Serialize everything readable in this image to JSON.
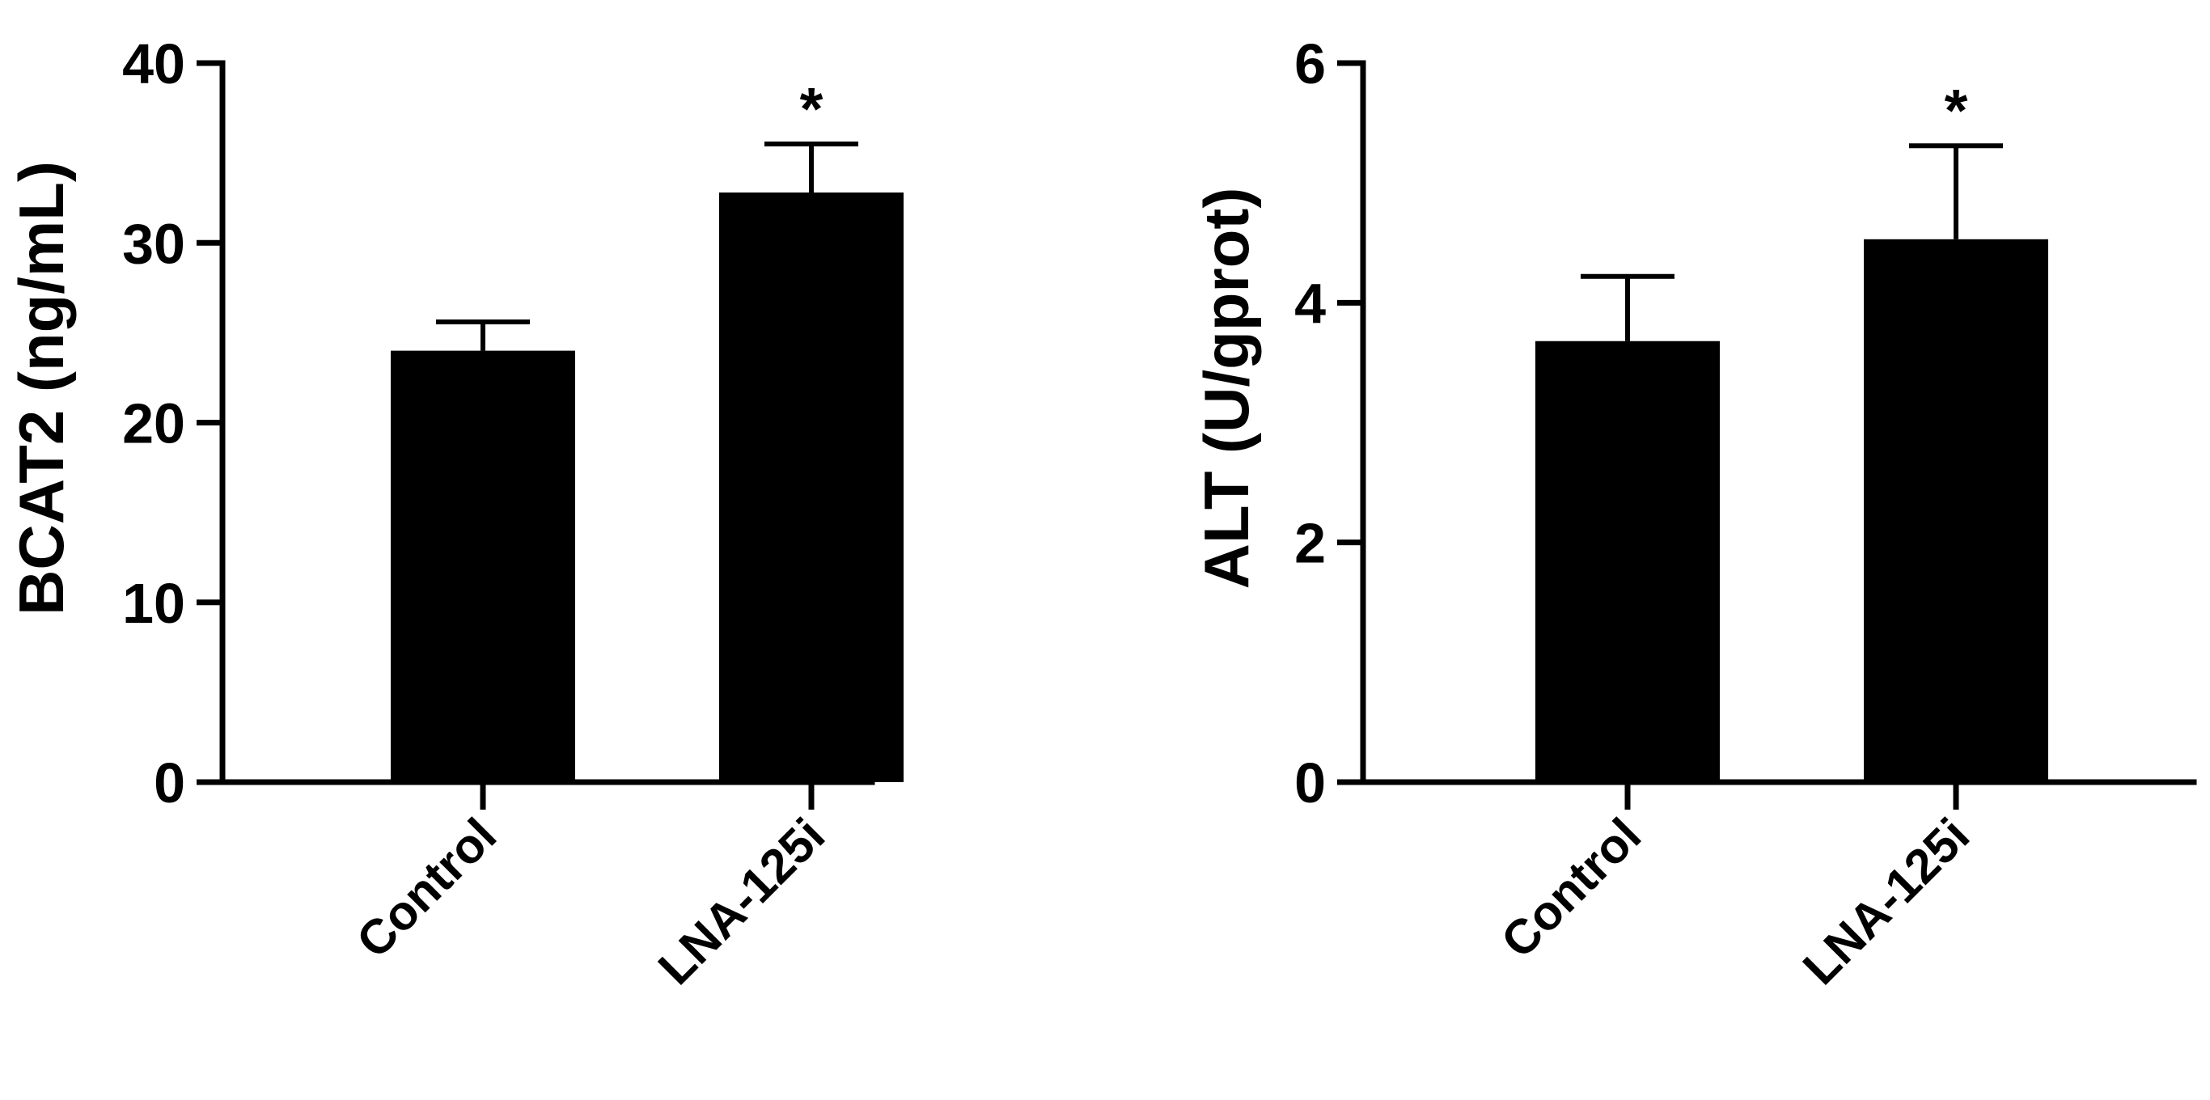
{
  "chart_data": [
    {
      "type": "bar",
      "ylabel": "BCAT2 (ng/mL)",
      "categories": [
        "Control",
        "LNA-125i"
      ],
      "values": [
        24.0,
        32.8
      ],
      "error_upper": [
        25.6,
        35.5
      ],
      "significance": [
        "",
        "*"
      ],
      "ylim": [
        0,
        40
      ],
      "yticks": [
        "0",
        "10",
        "20",
        "30",
        "40"
      ],
      "ytick_values": [
        0,
        10,
        20,
        30,
        40
      ],
      "bar_color": "#000000"
    },
    {
      "type": "bar",
      "ylabel": "ALT (U/gprot)",
      "categories": [
        "Control",
        "LNA-125i"
      ],
      "values": [
        3.68,
        4.53
      ],
      "error_upper": [
        4.22,
        5.31
      ],
      "significance": [
        "",
        "*"
      ],
      "ylim": [
        0,
        6
      ],
      "yticks": [
        "0",
        "2",
        "4",
        "6"
      ],
      "ytick_values": [
        0,
        2,
        4,
        6
      ],
      "bar_color": "#000000"
    }
  ]
}
